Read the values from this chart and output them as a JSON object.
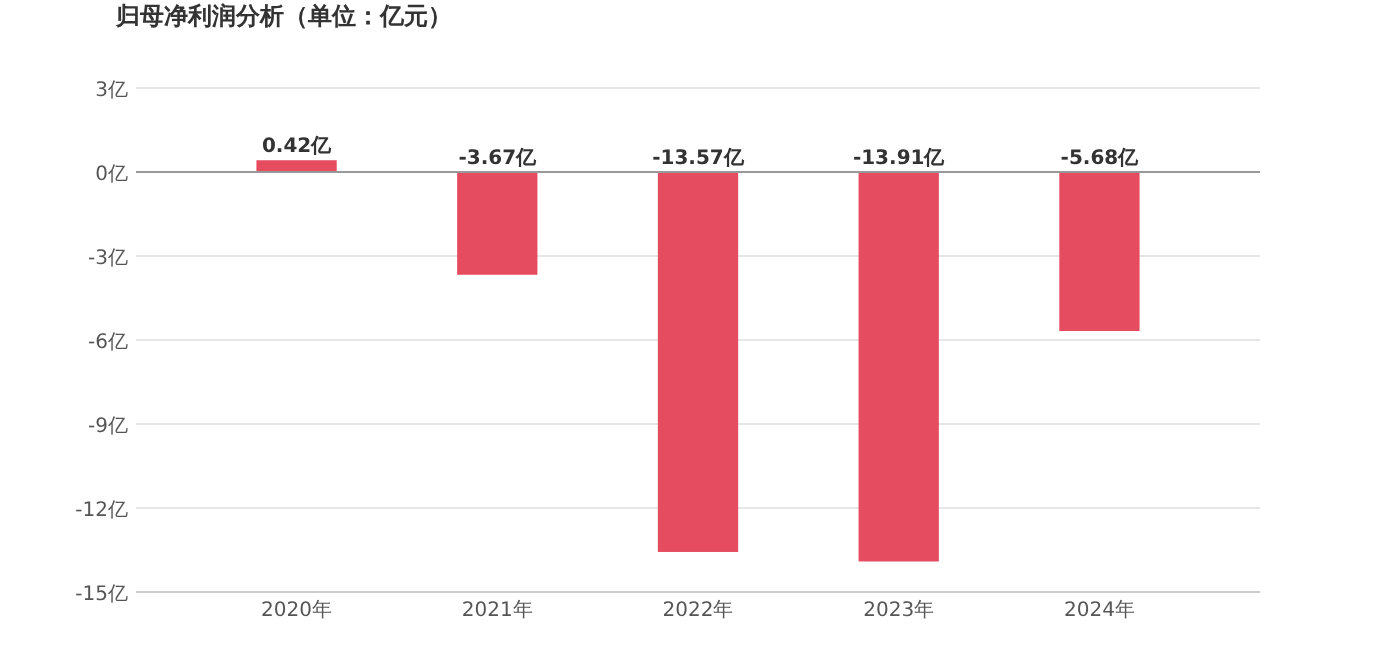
{
  "chart_data": {
    "type": "bar",
    "title": "归母净利润分析（单位：亿元）",
    "categories": [
      "2020年",
      "2021年",
      "2022年",
      "2023年",
      "2024年"
    ],
    "values": [
      0.42,
      -3.67,
      -13.57,
      -13.91,
      -5.68
    ],
    "value_labels": [
      "0.42亿",
      "-3.67亿",
      "-13.57亿",
      "-13.91亿",
      "-5.68亿"
    ],
    "color": "#e64c5f",
    "ylim": [
      -15,
      3
    ],
    "yticks": [
      {
        "value": 3,
        "label": "3亿"
      },
      {
        "value": 0,
        "label": "0亿"
      },
      {
        "value": -3,
        "label": "-3亿"
      },
      {
        "value": -6,
        "label": "-6亿"
      },
      {
        "value": -9,
        "label": "-9亿"
      },
      {
        "value": -12,
        "label": "-12亿"
      },
      {
        "value": -15,
        "label": "-15亿"
      }
    ],
    "grid": "y"
  }
}
